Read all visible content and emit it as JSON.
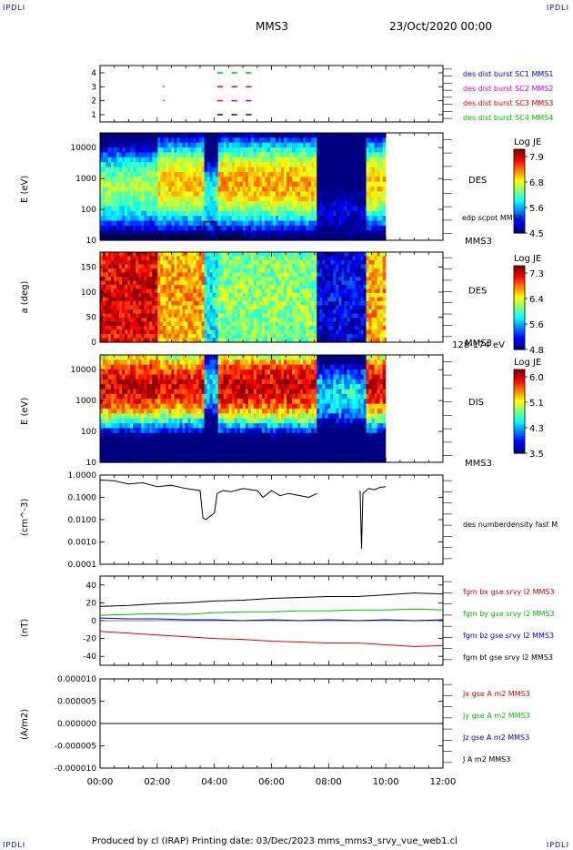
{
  "header": {
    "corner_left": "IPDLI",
    "corner_right": "IPDLI",
    "title": "MMS3",
    "date": "23/Oct/2020 00:00"
  },
  "footer": {
    "text": "Produced by cl (IRAP)   Printing date: 03/Dec/2023   mms_mms3_srvy_vue_web1.cl",
    "corner_left": "IPDLI",
    "corner_right": "IPDLI"
  },
  "colors": {
    "mms1": "#0000cc",
    "mms2": "#cc00cc",
    "mms3": "#dd0000",
    "mms4": "#00bb00",
    "black": "#000000"
  },
  "chart_data": [
    {
      "type": "scatter",
      "name": "burst availability",
      "yticks": [
        "1",
        "2",
        "3",
        "4"
      ],
      "legend": [
        {
          "label": "des dist burst SC1 MMS1",
          "color": "#0000cc"
        },
        {
          "label": "des dist burst SC2 MMS2",
          "color": "#cc00cc"
        },
        {
          "label": "des dist burst SC3 MMS3",
          "color": "#dd0000"
        },
        {
          "label": "des dist burst SC4 MMS4",
          "color": "#00bb00"
        }
      ],
      "segments": [
        {
          "level": 4,
          "t0": 4.1,
          "t1": 4.3
        },
        {
          "level": 4,
          "t0": 4.6,
          "t1": 4.8
        },
        {
          "level": 4,
          "t0": 5.1,
          "t1": 5.3
        },
        {
          "level": 3,
          "t0": 4.1,
          "t1": 4.3
        },
        {
          "level": 3,
          "t0": 4.6,
          "t1": 4.8
        },
        {
          "level": 3,
          "t0": 5.1,
          "t1": 5.3
        },
        {
          "level": 2,
          "t0": 4.1,
          "t1": 4.3
        },
        {
          "level": 2,
          "t0": 4.6,
          "t1": 4.8
        },
        {
          "level": 2,
          "t0": 5.1,
          "t1": 5.3
        },
        {
          "level": 1,
          "t0": 4.1,
          "t1": 4.3
        },
        {
          "level": 1,
          "t0": 4.6,
          "t1": 4.8
        },
        {
          "level": 1,
          "t0": 5.1,
          "t1": 5.3
        }
      ],
      "dots": [
        {
          "level": 3,
          "t": 2.2
        },
        {
          "level": 2,
          "t": 2.2
        }
      ]
    },
    {
      "type": "heatmap",
      "name": "DES energy spectrogram",
      "ylabel": "E (eV)",
      "yticks": [
        "10",
        "100",
        "1000",
        "10000"
      ],
      "yscale": "log",
      "ylim": [
        10,
        30000
      ],
      "label": "DES",
      "sublabel": "edp scpot MMS3",
      "sc_label": "MMS3",
      "colorbar": {
        "title": "Log JE",
        "ticks": [
          "7.9",
          "6.8",
          "5.6",
          "4.5"
        ],
        "range": [
          4.5,
          7.9
        ]
      },
      "regimes": [
        {
          "t0": 0.0,
          "t1": 2.0,
          "peak_ev": 500,
          "level": 6.3
        },
        {
          "t0": 2.0,
          "t1": 3.6,
          "peak_ev": 700,
          "level": 6.8
        },
        {
          "t0": 3.6,
          "t1": 4.1,
          "peak_ev": 250,
          "level": 5.9
        },
        {
          "t0": 4.1,
          "t1": 7.6,
          "peak_ev": 700,
          "level": 6.9
        },
        {
          "t0": 7.6,
          "t1": 9.3,
          "peak_ev": 80,
          "level": 4.8
        },
        {
          "t0": 9.3,
          "t1": 10.0,
          "peak_ev": 700,
          "level": 6.8
        }
      ],
      "scpot_end_hour": 5.0
    },
    {
      "type": "heatmap",
      "name": "DES pitch angle",
      "ylabel": "a (deg)",
      "yticks": [
        "0",
        "50",
        "100",
        "150"
      ],
      "ylim": [
        0,
        180
      ],
      "label": "DES",
      "sc_label": "MMS3",
      "energy_label": "128-174 eV",
      "colorbar": {
        "title": "Log JE",
        "ticks": [
          "7.3",
          "6.4",
          "5.6",
          "4.8"
        ],
        "range": [
          4.8,
          7.3
        ]
      },
      "regimes": [
        {
          "t0": 0.0,
          "t1": 2.0,
          "level": 7.1
        },
        {
          "t0": 2.0,
          "t1": 3.6,
          "level": 6.6
        },
        {
          "t0": 3.6,
          "t1": 4.1,
          "level": 5.8
        },
        {
          "t0": 4.1,
          "t1": 7.6,
          "level": 6.1
        },
        {
          "t0": 7.6,
          "t1": 9.3,
          "level": 5.1
        },
        {
          "t0": 9.3,
          "t1": 10.0,
          "level": 6.6
        }
      ]
    },
    {
      "type": "heatmap",
      "name": "DIS energy spectrogram",
      "ylabel": "E (eV)",
      "yticks": [
        "10",
        "100",
        "1000",
        "10000"
      ],
      "yscale": "log",
      "ylim": [
        10,
        30000
      ],
      "label": "DIS",
      "sc_label": "MMS3",
      "colorbar": {
        "title": "Log JE",
        "ticks": [
          "6.0",
          "5.1",
          "4.3",
          "3.5"
        ],
        "range": [
          3.5,
          6.0
        ]
      },
      "regimes": [
        {
          "t0": 0.0,
          "t1": 2.0,
          "peak_ev": 3000,
          "level": 5.8
        },
        {
          "t0": 2.0,
          "t1": 3.6,
          "peak_ev": 3000,
          "level": 5.7
        },
        {
          "t0": 3.6,
          "t1": 4.1,
          "peak_ev": 3000,
          "level": 4.4
        },
        {
          "t0": 4.1,
          "t1": 7.6,
          "peak_ev": 3000,
          "level": 5.8
        },
        {
          "t0": 7.6,
          "t1": 9.3,
          "peak_ev": 1500,
          "level": 4.4
        },
        {
          "t0": 9.3,
          "t1": 10.0,
          "peak_ev": 3000,
          "level": 5.8
        }
      ]
    },
    {
      "type": "line",
      "name": "DES number density",
      "ylabel": "(cm^-3)",
      "yticks": [
        "0.0001",
        "0.0010",
        "0.0100",
        "0.1000",
        "1.0000"
      ],
      "yscale": "log",
      "ylim": [
        0.0001,
        1.0
      ],
      "legend": [
        {
          "label": "des numberdensity fast M",
          "color": "#000000"
        }
      ],
      "series": [
        {
          "name": "des numberdensity fast M",
          "x": [
            0.0,
            0.5,
            1.0,
            1.5,
            2.0,
            2.5,
            3.0,
            3.5,
            3.6,
            3.7,
            4.0,
            4.1,
            4.3,
            4.6,
            5.0,
            5.5,
            5.7,
            6.0,
            6.3,
            6.6,
            7.0,
            7.3,
            7.6,
            null,
            9.1,
            9.15,
            9.2,
            9.4,
            9.6,
            9.8,
            10.0
          ],
          "y": [
            0.6,
            0.55,
            0.4,
            0.45,
            0.3,
            0.35,
            0.25,
            0.2,
            0.012,
            0.01,
            0.02,
            0.15,
            0.2,
            0.18,
            0.25,
            0.2,
            0.1,
            0.2,
            0.12,
            0.15,
            0.12,
            0.1,
            0.15,
            null,
            0.2,
            0.0005,
            0.15,
            0.25,
            0.22,
            0.28,
            0.3
          ]
        }
      ]
    },
    {
      "type": "line",
      "name": "FGM magnetic field",
      "ylabel": "(nT)",
      "yticks": [
        "-40",
        "-20",
        "0",
        "20",
        "40"
      ],
      "ylim": [
        -50,
        50
      ],
      "legend": [
        {
          "label": "fgm bx gse srvy l2 MMS3",
          "color": "#dd0000"
        },
        {
          "label": "fgm by gse srvy l2 MMS3",
          "color": "#00bb00"
        },
        {
          "label": "fgm bz gse srvy l2 MMS3",
          "color": "#0000cc"
        },
        {
          "label": "fgm bt gse srvy l2 MMS3",
          "color": "#000000"
        }
      ],
      "series": [
        {
          "name": "fgm bx gse srvy l2 MMS3",
          "x": [
            0,
            1,
            2,
            3,
            4,
            5,
            6,
            7,
            8,
            9,
            10,
            11,
            12
          ],
          "y": [
            -12,
            -14,
            -16,
            -18,
            -20,
            -21,
            -23,
            -24,
            -25,
            -25,
            -27,
            -29,
            -28
          ]
        },
        {
          "name": "fgm by gse srvy l2 MMS3",
          "x": [
            0,
            1,
            2,
            3,
            4,
            5,
            6,
            7,
            8,
            9,
            10,
            11,
            12
          ],
          "y": [
            6,
            7,
            8,
            7,
            9,
            10,
            10,
            11,
            11,
            12,
            12,
            13,
            12
          ]
        },
        {
          "name": "fgm bz gse srvy l2 MMS3",
          "x": [
            0,
            1,
            2,
            3,
            4,
            5,
            6,
            7,
            8,
            9,
            10,
            11,
            12
          ],
          "y": [
            3,
            2,
            2,
            1,
            1,
            0,
            1,
            0,
            1,
            0,
            1,
            0,
            1
          ]
        },
        {
          "name": "fgm bt gse srvy l2 MMS3",
          "x": [
            0,
            1,
            2,
            3,
            4,
            5,
            6,
            7,
            8,
            9,
            10,
            11,
            12
          ],
          "y": [
            16,
            17,
            19,
            20,
            22,
            23,
            25,
            26,
            27,
            27,
            29,
            31,
            30
          ]
        }
      ]
    },
    {
      "type": "line",
      "name": "Current density",
      "ylabel": "(A/m2)",
      "yticks": [
        "-0.000010",
        "-0.000005",
        "0.000000",
        "0.000005",
        "0.000010"
      ],
      "ylim": [
        -1e-05,
        1e-05
      ],
      "legend": [
        {
          "label": "Jx gse A m2 MMS3",
          "color": "#dd0000"
        },
        {
          "label": "Jy gse A m2 MMS3",
          "color": "#00bb00"
        },
        {
          "label": "Jz gse A m2 MMS3",
          "color": "#0000cc"
        },
        {
          "label": "J A m2 MMS3",
          "color": "#000000"
        }
      ],
      "series": [
        {
          "name": "J A m2 MMS3",
          "x": [
            0,
            2,
            4,
            6,
            8,
            10,
            12
          ],
          "y": [
            0,
            0,
            0,
            0,
            0,
            0,
            0
          ]
        }
      ]
    }
  ],
  "time_axis": {
    "ticks": [
      "00:00",
      "02:00",
      "04:00",
      "06:00",
      "08:00",
      "10:00",
      "12:00"
    ],
    "range_hours": [
      0,
      12
    ]
  }
}
